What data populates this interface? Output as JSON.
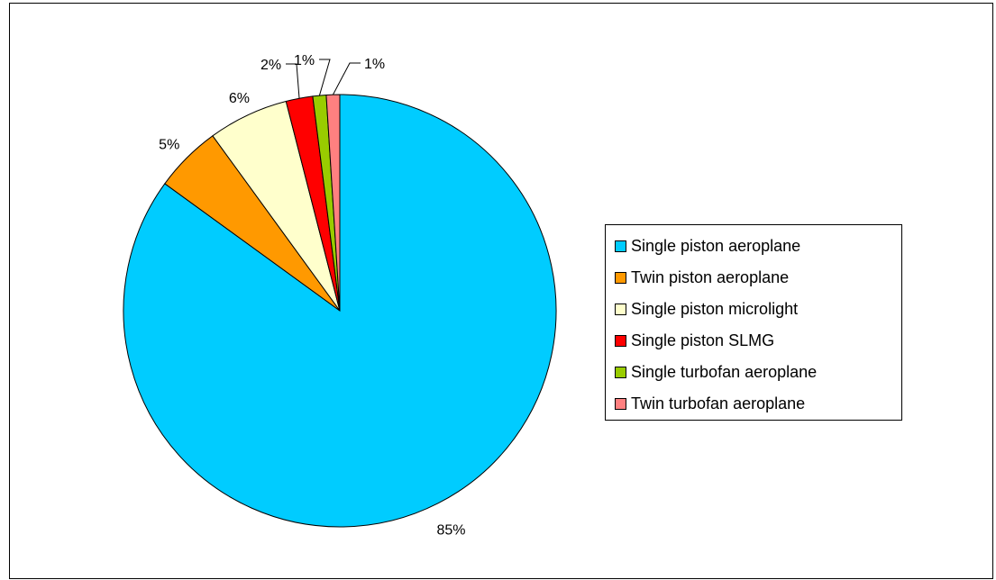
{
  "chart_data": {
    "type": "pie",
    "categories": [
      "Single piston aeroplane",
      "Twin piston aeroplane",
      "Single piston microlight",
      "Single piston SLMG",
      "Single turbofan aeroplane",
      "Twin turbofan aeroplane"
    ],
    "values": [
      85,
      5,
      6,
      2,
      1,
      1
    ],
    "labels": [
      "85%",
      "5%",
      "6%",
      "2%",
      "1%",
      "1%"
    ],
    "colors": [
      "#00CCFF",
      "#FF9900",
      "#FFFFCC",
      "#FF0000",
      "#99CC00",
      "#FF8080"
    ],
    "legend_position": "right",
    "title": ""
  }
}
